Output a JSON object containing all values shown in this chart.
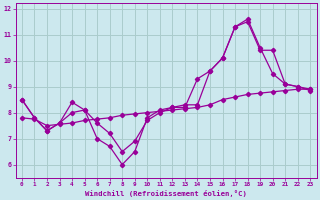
{
  "xlabel": "Windchill (Refroidissement éolien,°C)",
  "background_color": "#cce8ee",
  "grid_color": "#aacccc",
  "line_color": "#990099",
  "xlim": [
    -0.5,
    23.5
  ],
  "ylim": [
    5.5,
    12.2
  ],
  "xticks": [
    0,
    1,
    2,
    3,
    4,
    5,
    6,
    7,
    8,
    9,
    10,
    11,
    12,
    13,
    14,
    15,
    16,
    17,
    18,
    19,
    20,
    21,
    22,
    23
  ],
  "yticks": [
    6,
    7,
    8,
    9,
    10,
    11,
    12
  ],
  "series": [
    {
      "x": [
        0,
        1,
        2,
        3,
        4,
        5,
        6,
        7,
        8,
        9,
        10,
        11,
        12,
        13,
        14,
        15,
        16,
        17,
        18,
        19,
        20,
        21,
        22,
        23
      ],
      "y": [
        8.5,
        7.8,
        7.3,
        7.6,
        8.4,
        8.1,
        7.0,
        6.7,
        6.0,
        6.5,
        7.8,
        8.1,
        8.2,
        8.2,
        9.3,
        9.6,
        10.1,
        11.3,
        11.6,
        10.5,
        9.5,
        9.1,
        9.0,
        8.9
      ]
    },
    {
      "x": [
        0,
        1,
        2,
        3,
        4,
        5,
        6,
        7,
        8,
        9,
        10,
        11,
        12,
        13,
        14,
        15,
        16,
        17,
        18,
        19,
        20,
        21,
        22,
        23
      ],
      "y": [
        8.5,
        7.8,
        7.3,
        7.6,
        8.0,
        8.1,
        7.6,
        7.2,
        6.5,
        6.9,
        7.7,
        8.0,
        8.2,
        8.3,
        8.3,
        9.6,
        10.1,
        11.3,
        11.5,
        10.4,
        10.4,
        9.1,
        9.0,
        8.85
      ]
    },
    {
      "x": [
        0,
        1,
        2,
        3,
        4,
        5,
        6,
        7,
        8,
        9,
        10,
        11,
        12,
        13,
        14,
        15,
        16,
        17,
        18,
        19,
        20,
        21,
        22,
        23
      ],
      "y": [
        7.8,
        7.75,
        7.5,
        7.55,
        7.6,
        7.7,
        7.75,
        7.8,
        7.9,
        7.95,
        8.0,
        8.05,
        8.1,
        8.15,
        8.2,
        8.3,
        8.5,
        8.6,
        8.7,
        8.75,
        8.8,
        8.85,
        8.9,
        8.9
      ]
    }
  ]
}
